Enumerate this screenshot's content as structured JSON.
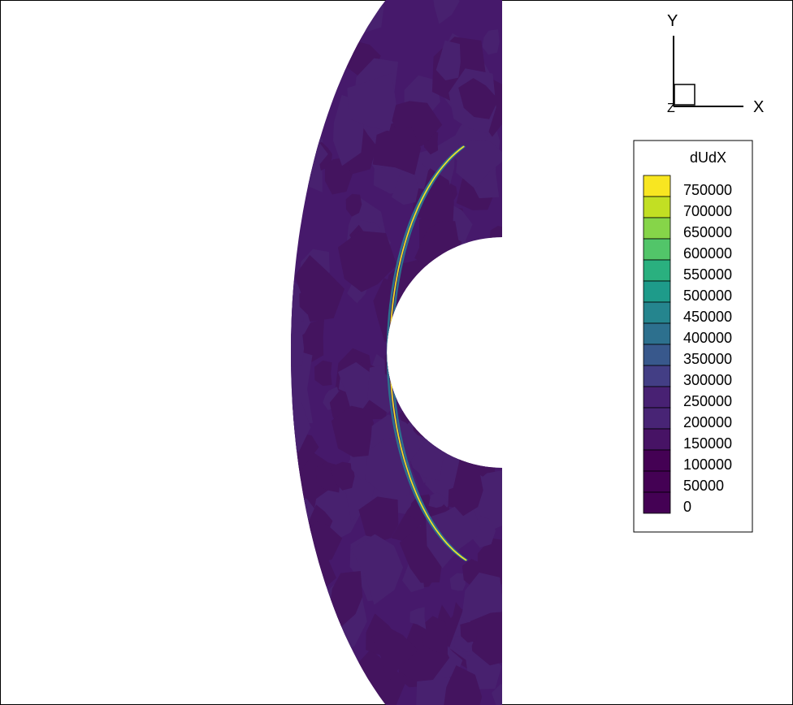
{
  "chart_data": {
    "type": "heatmap",
    "variable": "dUdX",
    "axes": {
      "x_label": "X",
      "y_label": "Y",
      "z_label": "Z"
    },
    "legend": {
      "title": "dUdX",
      "placement": "right",
      "levels": [
        750000,
        700000,
        650000,
        600000,
        550000,
        500000,
        450000,
        400000,
        350000,
        300000,
        250000,
        200000,
        150000,
        100000,
        50000,
        0
      ],
      "colors": [
        "#f8e621",
        "#c2df23",
        "#86d549",
        "#52c569",
        "#2ab07f",
        "#1e9b8a",
        "#25858e",
        "#2d708e",
        "#38588c",
        "#433e85",
        "#482173",
        "#482475",
        "#471365",
        "#440154",
        "#440154",
        "#440154"
      ]
    },
    "field": {
      "background_level": 50000,
      "background_color": "#46196b",
      "patch_colors": [
        "#44145f",
        "#48216f"
      ],
      "shock_peak_level": 750000,
      "shock_peak_color": "#f8e621",
      "shock_flank_color": "#2d708e"
    }
  }
}
